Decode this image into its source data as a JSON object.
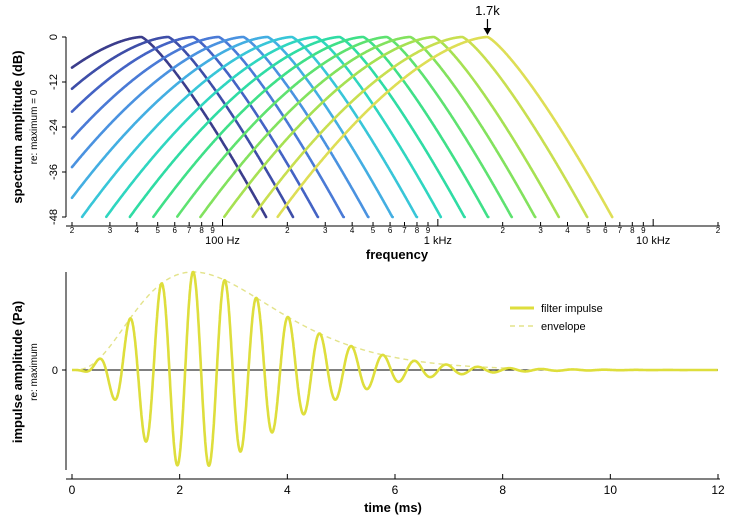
{
  "chart_data": [
    {
      "type": "line",
      "ylabel": "spectrum amplitude (dB)",
      "ylabel_sub": "re: maximum = 0",
      "xlabel": "frequency",
      "x_scale": "log",
      "xlim": [
        20,
        20000
      ],
      "ylim": [
        -48,
        0
      ],
      "yticks": [
        0,
        -12,
        -24,
        -36,
        -48
      ],
      "x_major_labels": [
        {
          "value": 100,
          "label": "100 Hz"
        },
        {
          "value": 1000,
          "label": "1 kHz"
        },
        {
          "value": 10000,
          "label": "10 kHz"
        }
      ],
      "x_minor_labels": [
        {
          "value": 20,
          "label": "2"
        },
        {
          "value": 30,
          "label": "3"
        },
        {
          "value": 40,
          "label": "4"
        },
        {
          "value": 50,
          "label": "5"
        },
        {
          "value": 60,
          "label": "6"
        },
        {
          "value": 70,
          "label": "7"
        },
        {
          "value": 80,
          "label": "8"
        },
        {
          "value": 90,
          "label": "9"
        },
        {
          "value": 200,
          "label": "2"
        },
        {
          "value": 300,
          "label": "3"
        },
        {
          "value": 400,
          "label": "4"
        },
        {
          "value": 500,
          "label": "5"
        },
        {
          "value": 600,
          "label": "6"
        },
        {
          "value": 700,
          "label": "7"
        },
        {
          "value": 800,
          "label": "8"
        },
        {
          "value": 900,
          "label": "9"
        },
        {
          "value": 2000,
          "label": "2"
        },
        {
          "value": 3000,
          "label": "3"
        },
        {
          "value": 4000,
          "label": "4"
        },
        {
          "value": 5000,
          "label": "5"
        },
        {
          "value": 6000,
          "label": "6"
        },
        {
          "value": 7000,
          "label": "7"
        },
        {
          "value": 8000,
          "label": "8"
        },
        {
          "value": 9000,
          "label": "9"
        },
        {
          "value": 20000,
          "label": "2"
        }
      ],
      "series": [
        {
          "center_hz": 42,
          "color": "#3b3d8c"
        },
        {
          "center_hz": 56,
          "color": "#3e4ea8"
        },
        {
          "center_hz": 73,
          "color": "#4463c4"
        },
        {
          "center_hz": 96,
          "color": "#4a7ad6"
        },
        {
          "center_hz": 125,
          "color": "#4a92e0"
        },
        {
          "center_hz": 162,
          "color": "#43aee2"
        },
        {
          "center_hz": 210,
          "color": "#38c6d8"
        },
        {
          "center_hz": 272,
          "color": "#2fd6c0"
        },
        {
          "center_hz": 350,
          "color": "#2fdca4"
        },
        {
          "center_hz": 450,
          "color": "#3fe088"
        },
        {
          "center_hz": 580,
          "color": "#5ee270"
        },
        {
          "center_hz": 745,
          "color": "#82e25e"
        },
        {
          "center_hz": 960,
          "color": "#a6e152"
        },
        {
          "center_hz": 1300,
          "color": "#c8df50"
        },
        {
          "center_hz": 1700,
          "color": "#dede55"
        }
      ],
      "annotation": {
        "text": "1.7k",
        "x": 1700,
        "y": 0
      }
    },
    {
      "type": "line",
      "ylabel": "impulse amplitude (Pa)",
      "ylabel_sub": "re: maximum",
      "xlabel": "time (ms)",
      "xlim": [
        0,
        12
      ],
      "ylim": [
        -1,
        1
      ],
      "xticks": [
        0,
        2,
        4,
        6,
        8,
        10,
        12
      ],
      "yticks": [
        0
      ],
      "series": [
        {
          "name": "filter impulse",
          "color": "#dede3c",
          "style": "solid",
          "frequency_khz": 1.7,
          "peak_time_ms": 2.25
        },
        {
          "name": "envelope",
          "color": "#e3e38a",
          "style": "dashed"
        }
      ],
      "legend": "upper-right"
    }
  ]
}
